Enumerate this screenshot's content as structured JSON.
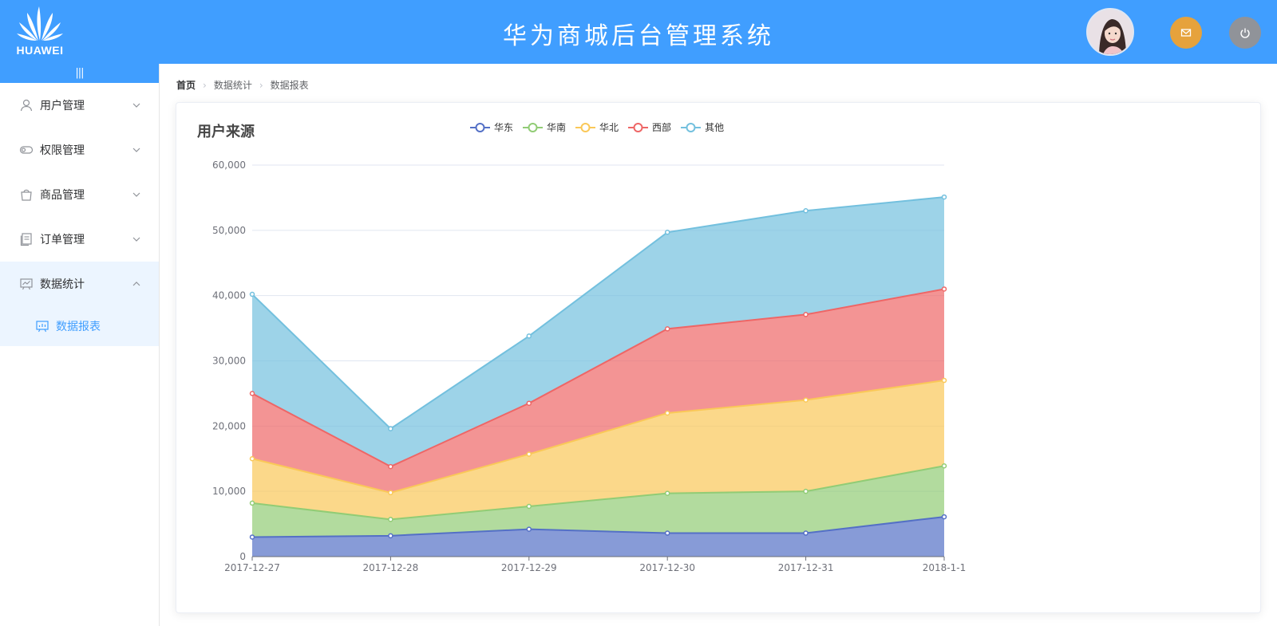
{
  "header": {
    "logo_text": "HUAWEI",
    "title": "华为商城后台管理系统",
    "avatar": "user-avatar",
    "mail_icon": "mail-icon",
    "power_icon": "power-icon",
    "colors": {
      "bar": "#409eff",
      "mail": "#e6a23c",
      "power": "#909399"
    }
  },
  "sidebar": {
    "collapse_label": "|||",
    "items": [
      {
        "label": "用户管理",
        "icon": "user-icon"
      },
      {
        "label": "权限管理",
        "icon": "toggle-icon"
      },
      {
        "label": "商品管理",
        "icon": "shopping-bag-icon"
      },
      {
        "label": "订单管理",
        "icon": "document-icon"
      },
      {
        "label": "数据统计",
        "icon": "chart-icon",
        "opened": true
      }
    ],
    "subitem": {
      "label": "数据报表",
      "icon": "presentation-icon"
    }
  },
  "breadcrumb": [
    "首页",
    "数据统计",
    "数据报表"
  ],
  "chart_data": {
    "type": "area",
    "stacked": true,
    "title": "用户来源",
    "categories": [
      "2017-12-27",
      "2017-12-28",
      "2017-12-29",
      "2017-12-30",
      "2017-12-31",
      "2018-1-1"
    ],
    "ylim": [
      0,
      60000
    ],
    "yticks": [
      "0",
      "10,000",
      "20,000",
      "30,000",
      "40,000",
      "50,000",
      "60,000"
    ],
    "legend_position": "top",
    "grid": true,
    "series": [
      {
        "name": "华东",
        "color": "#5470c6",
        "values": [
          3000,
          3200,
          4200,
          3600,
          3600,
          6100
        ]
      },
      {
        "name": "华南",
        "color": "#91cc75",
        "values": [
          5200,
          2500,
          3500,
          6100,
          6400,
          7800
        ]
      },
      {
        "name": "华北",
        "color": "#fac858",
        "values": [
          6800,
          4100,
          8000,
          12300,
          14000,
          13100
        ]
      },
      {
        "name": "西部",
        "color": "#ee6666",
        "values": [
          10000,
          4000,
          7800,
          12900,
          13100,
          14000
        ]
      },
      {
        "name": "其他",
        "color": "#73c0de",
        "values": [
          15200,
          5800,
          10300,
          14800,
          15900,
          14100
        ]
      }
    ]
  }
}
